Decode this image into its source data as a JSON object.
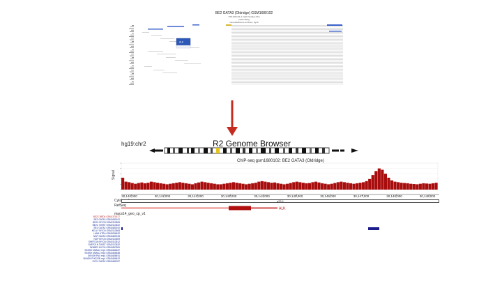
{
  "top_panel": {
    "title": "BE2 GATA3 (Oldridge) GSM1680102",
    "subtitle_lines": [
      "TSS MACS1.4: GEO Surface Plot",
      "peak calling",
      "Neuroblastoma cell lines, hg19"
    ],
    "callout_label": "ALK"
  },
  "browser": {
    "assembly_label": "hg19:chr2",
    "title": "R2 Genome Browser",
    "chip_track_title": "ChIP-seq gsm1680102: BE2 GATA3 (Oldridge)",
    "signal_axis_label": "Signal",
    "cytoband_label": "Cytoband",
    "refseq_label": "RefSeq",
    "gene_track_label": "macs14_geo_cp_v1",
    "band_label": "p23.1",
    "gene_label": "ALK",
    "x_ticks": [
      "30,140,000",
      "30,141,000",
      "30,142,000",
      "30,143,000",
      "30,144,000",
      "30,145,000",
      "30,146,000",
      "30,147,000",
      "30,148,000",
      "30,149,000"
    ]
  },
  "track_names": [
    "BE2C BRD4 GSM1371877",
    "BE2 GATA3 GSM1680102",
    "BE2C MYCN GSM2113506",
    "BE2C TWIST GSM2113522",
    "BE2 GATA2 GSM1680100",
    "KELLY MYCN GSM2113508",
    "LAN5 HTRA GSM2096632",
    "NGP GATA3 GSM1680108",
    "NGP MYCN GSM2113509",
    "SHEP21N MYCN GSM2113512",
    "SHEP21N TWIST GSM2113532",
    "SKNBE2 MYCN GSM1867881",
    "SKNSH MAML3 rep1 GSM1666487",
    "SKNSH MAML3 rep2 GSM1666488",
    "SKNSH PAX rep1 GSM1666491",
    "SKNSH PHOX2B rep1 GSM1666492",
    "SY5Y GATA2 GSM1680097"
  ],
  "colors": {
    "signal": "#a80d0d",
    "arrow": "#c62b20",
    "gene": "#b01010",
    "gene_light": "#f2b3b3",
    "peak_blue": "#1c1c8c",
    "track_blue": "#1a2f9a"
  },
  "chart_data": {
    "type": "area",
    "title": "ChIP-seq gsm1680102: BE2 GATA3 (Oldridge)",
    "ylabel": "Signal",
    "xlabel": "",
    "x_ticks": [
      "30,140,000",
      "30,141,000",
      "30,142,000",
      "30,143,000",
      "30,144,000",
      "30,145,000",
      "30,146,000",
      "30,147,000",
      "30,148,000",
      "30,149,000"
    ],
    "xlim": [
      30139700,
      30149300
    ],
    "series": [
      {
        "values": [
          0.45,
          0.3,
          0.28,
          0.25,
          0.22,
          0.25,
          0.27,
          0.24,
          0.26,
          0.3,
          0.28,
          0.26,
          0.24,
          0.22,
          0.2,
          0.22,
          0.24,
          0.26,
          0.28,
          0.26,
          0.24,
          0.22,
          0.2,
          0.24,
          0.27,
          0.3,
          0.28,
          0.26,
          0.24,
          0.22,
          0.2,
          0.2,
          0.22,
          0.24,
          0.26,
          0.28,
          0.26,
          0.24,
          0.22,
          0.2,
          0.22,
          0.24,
          0.26,
          0.3,
          0.32,
          0.3,
          0.28,
          0.26,
          0.27,
          0.24,
          0.22,
          0.2,
          0.22,
          0.25,
          0.28,
          0.3,
          0.28,
          0.26,
          0.24,
          0.25,
          0.28,
          0.3,
          0.27,
          0.24,
          0.22,
          0.2,
          0.22,
          0.25,
          0.28,
          0.3,
          0.28,
          0.26,
          0.24,
          0.22,
          0.24,
          0.26,
          0.28,
          0.32,
          0.4,
          0.55,
          0.7,
          0.8,
          0.75,
          0.6,
          0.45,
          0.35,
          0.3,
          0.28,
          0.26,
          0.25,
          0.24,
          0.22,
          0.21,
          0.2,
          0.22,
          0.24,
          0.23,
          0.22,
          0.24,
          0.26
        ]
      }
    ]
  }
}
